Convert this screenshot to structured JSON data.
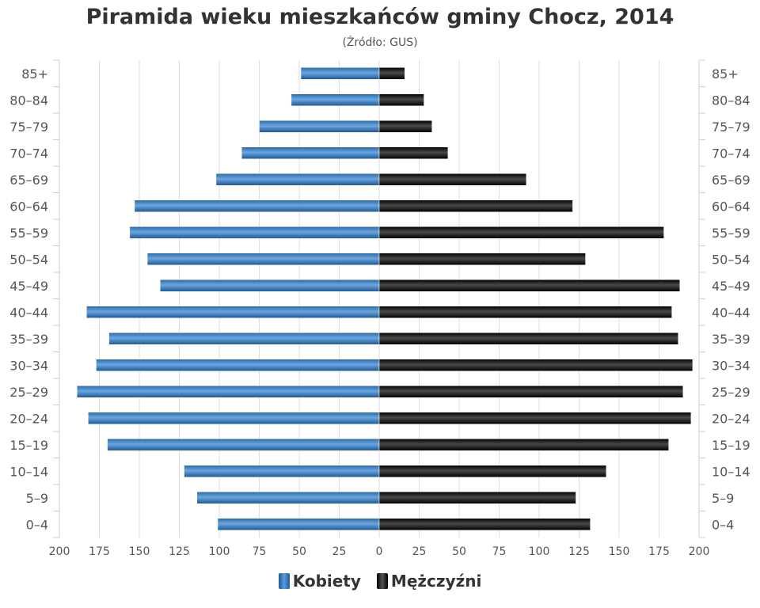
{
  "chart_data": {
    "type": "bar",
    "title": "Piramida wieku mieszkańców gminy Chocz, 2014",
    "subtitle": "(Źródło: GUS)",
    "categories": [
      "85+",
      "80–84",
      "75–79",
      "70–74",
      "65–69",
      "60–64",
      "55–59",
      "50–54",
      "45–49",
      "40–44",
      "35–39",
      "30–34",
      "25–29",
      "20–24",
      "15–19",
      "10–14",
      "5–9",
      "0–4"
    ],
    "series": [
      {
        "name": "Kobiety",
        "color": "#3b7cc0",
        "values": [
          49,
          55,
          75,
          86,
          102,
          153,
          156,
          145,
          137,
          183,
          169,
          177,
          189,
          182,
          170,
          122,
          114,
          101
        ]
      },
      {
        "name": "Mężczyźni",
        "color": "#111111",
        "values": [
          16,
          28,
          33,
          43,
          92,
          121,
          178,
          129,
          188,
          183,
          187,
          196,
          190,
          195,
          181,
          142,
          123,
          132
        ]
      }
    ],
    "x_ticks": [
      "200",
      "175",
      "150",
      "125",
      "100",
      "75",
      "50",
      "25",
      "0",
      "25",
      "50",
      "75",
      "100",
      "125",
      "150",
      "175",
      "200"
    ],
    "xlim": [
      -200,
      200
    ],
    "grid": true,
    "legend": "bottom-center"
  }
}
